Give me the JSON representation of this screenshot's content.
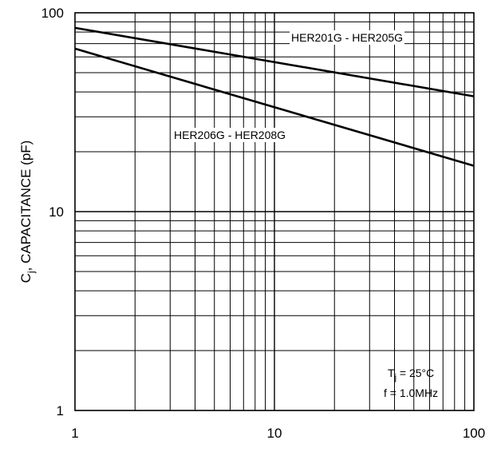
{
  "chart_data": {
    "type": "line",
    "x_scale": "log",
    "y_scale": "log",
    "xlim": [
      1,
      100
    ],
    "ylim": [
      1,
      100
    ],
    "grid": true,
    "xlabel": "",
    "ylabel": {
      "main": "C",
      "sub": "j",
      "rest": ", CAPACITANCE (pF)"
    },
    "x_ticks": [
      {
        "value": 1,
        "label": "1"
      },
      {
        "value": 10,
        "label": "10"
      },
      {
        "value": 100,
        "label": "100"
      }
    ],
    "y_ticks": [
      {
        "value": 1,
        "label": "1"
      },
      {
        "value": 10,
        "label": "10"
      },
      {
        "value": 100,
        "label": "100"
      }
    ],
    "series": [
      {
        "name": "HER201G - HER205G",
        "x": [
          1,
          100
        ],
        "y": [
          84,
          38
        ]
      },
      {
        "name": "HER206G - HER208G",
        "x": [
          1,
          100
        ],
        "y": [
          66,
          17
        ]
      }
    ],
    "annotations": {
      "tj_main": "T",
      "tj_sub": "j",
      "tj_rest": " = 25°C",
      "freq": "f = 1.0MHz"
    }
  }
}
